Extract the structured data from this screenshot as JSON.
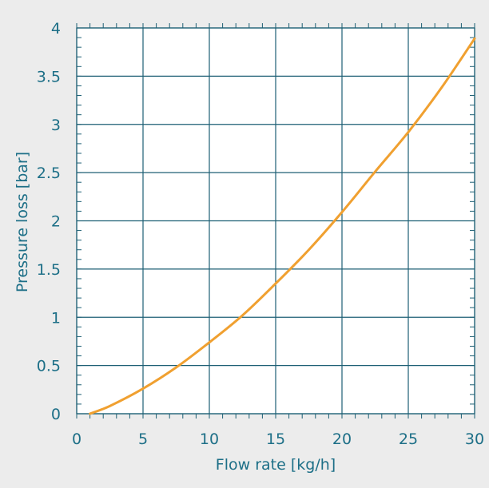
{
  "chart_data": {
    "type": "line",
    "xlabel": "Flow rate [kg/h]",
    "ylabel": "Pressure loss [bar]",
    "xlim": [
      0,
      30
    ],
    "ylim": [
      0,
      4
    ],
    "x_ticks": [
      "0",
      "5",
      "10",
      "15",
      "20",
      "25",
      "30"
    ],
    "y_ticks": [
      "0",
      "0.5",
      "1",
      "1.5",
      "2",
      "2.5",
      "3",
      "3.5",
      "4"
    ],
    "grid": true,
    "series": [
      {
        "color": "#f0a030",
        "x": [
          1,
          2.5,
          5,
          7.5,
          10,
          12.5,
          15,
          17.5,
          20,
          22.5,
          25,
          27.5,
          30
        ],
        "y": [
          0.0,
          0.08,
          0.26,
          0.48,
          0.74,
          1.02,
          1.35,
          1.7,
          2.09,
          2.51,
          2.92,
          3.38,
          3.89
        ]
      }
    ]
  },
  "colors": {
    "background": "#ececec",
    "plot_background": "#ffffff",
    "grid": "#1d5f74",
    "text": "#1d6f87"
  }
}
